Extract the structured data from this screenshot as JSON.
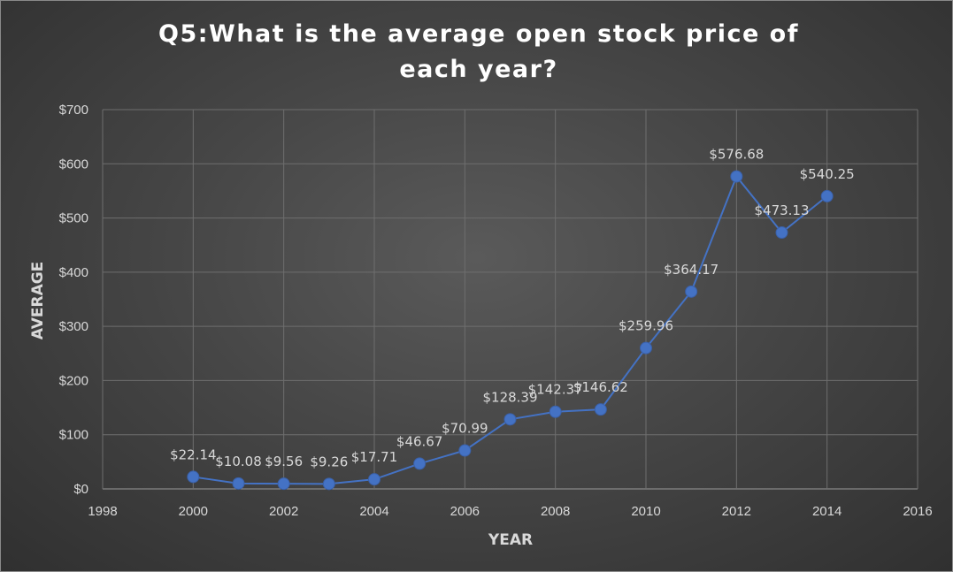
{
  "chart_data": {
    "type": "scatter",
    "title": "Q5:What is the average open stock price of each year?",
    "xlabel": "YEAR",
    "ylabel": "AVERAGE",
    "xlim": [
      1998,
      2016
    ],
    "ylim": [
      0,
      700
    ],
    "x_ticks": [
      1998,
      2000,
      2002,
      2004,
      2006,
      2008,
      2010,
      2012,
      2014,
      2016
    ],
    "y_ticks": [
      0,
      100,
      200,
      300,
      400,
      500,
      600,
      700
    ],
    "y_tick_labels": [
      "$0",
      "$100",
      "$200",
      "$300",
      "$400",
      "$500",
      "$600",
      "$700"
    ],
    "grid": true,
    "legend": false,
    "series": [
      {
        "style": "line-with-markers",
        "x": [
          2000,
          2001,
          2002,
          2003,
          2004,
          2005,
          2006,
          2007,
          2008,
          2009,
          2010,
          2011,
          2012,
          2013,
          2014
        ],
        "y": [
          22.14,
          10.08,
          9.56,
          9.26,
          17.71,
          46.67,
          70.99,
          128.39,
          142.37,
          146.62,
          259.96,
          364.17,
          576.68,
          473.13,
          540.25
        ],
        "labels": [
          "$22.14",
          "$10.08",
          "$9.56",
          "$9.26",
          "$17.71",
          "$46.67",
          "$70.99",
          "$128.39",
          "$142.37",
          "$146.62",
          "$259.96",
          "$364.17",
          "$576.68",
          "$473.13",
          "$540.25"
        ]
      }
    ],
    "colors": {
      "line": "#4472c4",
      "marker": "#4472c4",
      "grid": "#6e6e6e",
      "text": "#d9d9d9",
      "title": "#ffffff",
      "background": "#404040"
    }
  }
}
